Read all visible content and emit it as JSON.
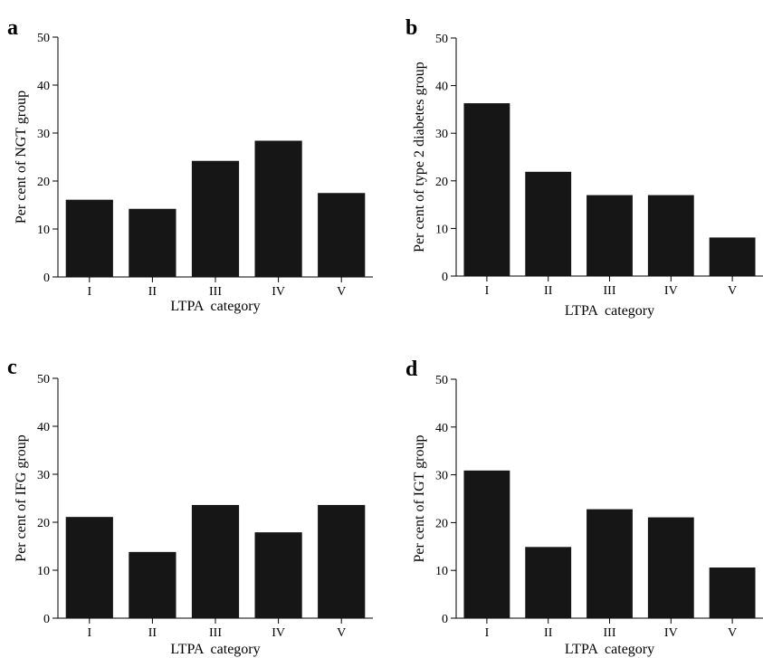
{
  "chart_data": [
    {
      "type": "bar",
      "panel": "a",
      "categories": [
        "I",
        "II",
        "III",
        "IV",
        "V"
      ],
      "values": [
        16.1,
        14.2,
        24.2,
        28.4,
        17.5
      ],
      "xlabel": "LTPA  category",
      "ylabel": "Per cent of NGT group",
      "ylim": [
        0,
        50
      ],
      "yticks": [
        0,
        10,
        20,
        30,
        40,
        50
      ],
      "grid": false,
      "bar_color": "#161616"
    },
    {
      "type": "bar",
      "panel": "b",
      "categories": [
        "I",
        "II",
        "III",
        "IV",
        "V"
      ],
      "values": [
        36.3,
        21.9,
        17.0,
        17.0,
        8.1
      ],
      "xlabel": "LTPA  category",
      "ylabel": "Per cent of type 2 diabetes group",
      "ylim": [
        0,
        50
      ],
      "yticks": [
        0,
        10,
        20,
        30,
        40,
        50
      ],
      "grid": false,
      "bar_color": "#161616"
    },
    {
      "type": "bar",
      "panel": "c",
      "categories": [
        "I",
        "II",
        "III",
        "IV",
        "V"
      ],
      "values": [
        21.1,
        13.8,
        23.6,
        17.9,
        23.6
      ],
      "xlabel": "LTPA  category",
      "ylabel": "Per cent of IFG group",
      "ylim": [
        0,
        50
      ],
      "yticks": [
        0,
        10,
        20,
        30,
        40,
        50
      ],
      "grid": false,
      "bar_color": "#161616"
    },
    {
      "type": "bar",
      "panel": "d",
      "categories": [
        "I",
        "II",
        "III",
        "IV",
        "V"
      ],
      "values": [
        30.9,
        14.9,
        22.8,
        21.1,
        10.6
      ],
      "xlabel": "LTPA  category",
      "ylabel": "Per cent of IGT group",
      "ylim": [
        0,
        50
      ],
      "yticks": [
        0,
        10,
        20,
        30,
        40,
        50
      ],
      "grid": false,
      "bar_color": "#161616"
    }
  ]
}
